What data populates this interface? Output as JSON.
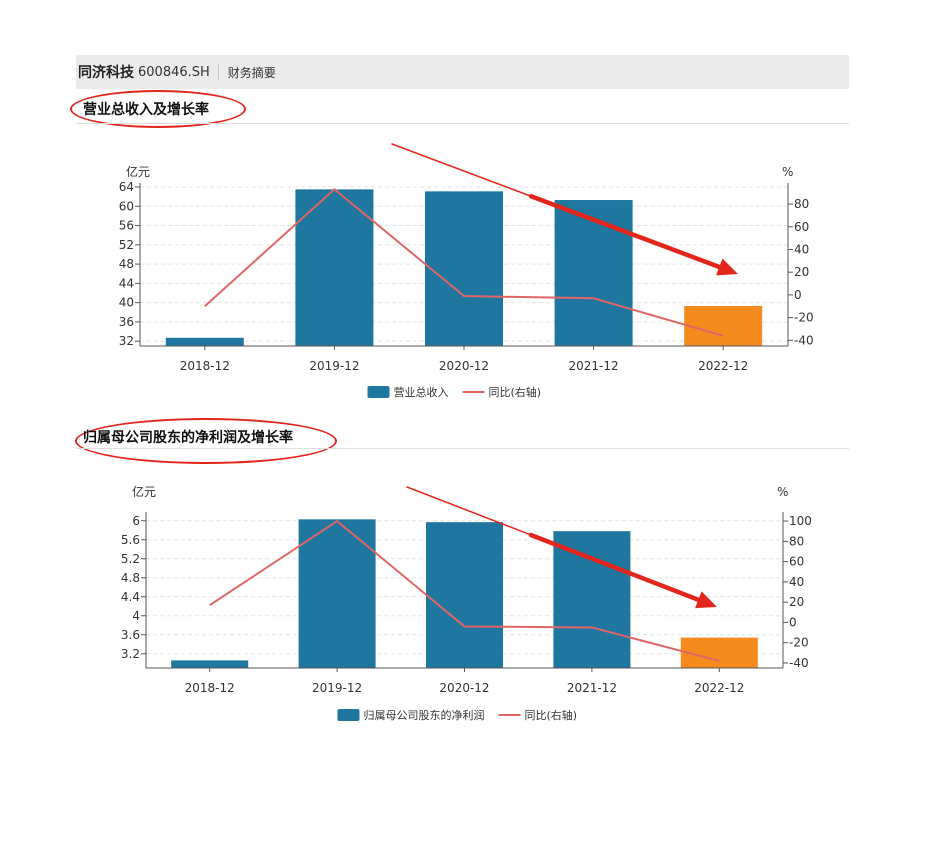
{
  "header": {
    "company": "同济科技",
    "code": "600846.SH",
    "tab": "财务摘要"
  },
  "colors": {
    "bar": "#1f77a0",
    "highlight": "#f58a1f",
    "line": "#e06666",
    "annotation": "#e3261c"
  },
  "sections": [
    {
      "title": "营业总收入及增长率"
    },
    {
      "title": "归属母公司股东的净利润及增长率"
    }
  ],
  "chart_data": [
    {
      "type": "bar",
      "categories": [
        "2018-12",
        "2019-12",
        "2020-12",
        "2021-12",
        "2022-12"
      ],
      "y_unit": "亿元",
      "y2_unit": "%",
      "ylim": [
        31,
        64
      ],
      "yticks": [
        "64",
        "60",
        "56",
        "52",
        "48",
        "44",
        "40",
        "36",
        "32"
      ],
      "y2lim": [
        -45,
        95
      ],
      "y2ticks": [
        "80",
        "60",
        "40",
        "20",
        "0",
        "-20",
        "-40"
      ],
      "grid": true,
      "legend_position": "bottom",
      "highlight_index": 4,
      "series": [
        {
          "name": "营业总收入",
          "axis": "left",
          "kind": "bar",
          "values": [
            32.7,
            63.5,
            63.1,
            61.3,
            39.3
          ]
        },
        {
          "name": "同比(右轴)",
          "axis": "right",
          "kind": "line",
          "values": [
            -10,
            93,
            -1,
            -3,
            -36
          ]
        }
      ]
    },
    {
      "type": "bar",
      "categories": [
        "2018-12",
        "2019-12",
        "2020-12",
        "2021-12",
        "2022-12"
      ],
      "y_unit": "亿元",
      "y2_unit": "%",
      "ylim": [
        2.9,
        6.1
      ],
      "yticks": [
        "6",
        "5.6",
        "5.2",
        "4.8",
        "4.4",
        "4",
        "3.6",
        "3.2"
      ],
      "y2lim": [
        -45,
        105
      ],
      "y2ticks": [
        "100",
        "80",
        "60",
        "40",
        "20",
        "0",
        "-20",
        "-40"
      ],
      "grid": true,
      "legend_position": "bottom",
      "highlight_index": 4,
      "series": [
        {
          "name": "归属母公司股东的净利润",
          "axis": "left",
          "kind": "bar",
          "values": [
            3.06,
            6.03,
            5.97,
            5.78,
            3.54
          ]
        },
        {
          "name": "同比(右轴)",
          "axis": "right",
          "kind": "line",
          "values": [
            17,
            100,
            -4,
            -5,
            -38
          ]
        }
      ]
    }
  ]
}
